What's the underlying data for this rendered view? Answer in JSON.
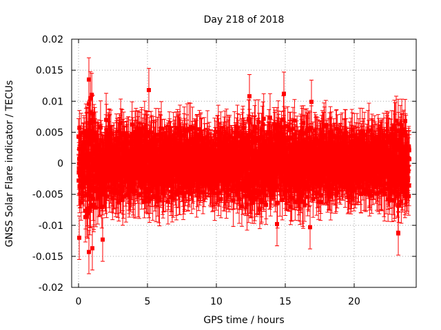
{
  "chart_data": {
    "type": "scatter",
    "title": "Day 218 of 2018",
    "xlabel": "GPS time / hours",
    "ylabel": "GNSS Solar Flare indicator / TECUs",
    "xlim": [
      -0.5,
      24.5
    ],
    "ylim": [
      -0.02,
      0.02
    ],
    "x_ticks": [
      0,
      5,
      10,
      15,
      20
    ],
    "x_tick_labels": [
      "0",
      "5",
      "10",
      "15",
      "20"
    ],
    "y_ticks": [
      -0.02,
      -0.015,
      -0.01,
      -0.005,
      0,
      0.005,
      0.01,
      0.015,
      0.02
    ],
    "y_tick_labels": [
      "-0.02",
      "-0.015",
      "-0.01",
      "-0.005",
      "0",
      "0.005",
      "0.01",
      "0.015",
      "0.02"
    ],
    "grid": true,
    "series": [
      {
        "name": "solar flare indicator",
        "color": "#ff0000",
        "marker": "square",
        "error_bars": true,
        "x_range": [
          0,
          24
        ],
        "typical_error": 0.0035,
        "noise_envelope": [
          {
            "x": 0.0,
            "spread": 0.006
          },
          {
            "x": 0.5,
            "spread": 0.009
          },
          {
            "x": 0.8,
            "spread": 0.012
          },
          {
            "x": 1.5,
            "spread": 0.008
          },
          {
            "x": 3.0,
            "spread": 0.0065
          },
          {
            "x": 6.0,
            "spread": 0.0065
          },
          {
            "x": 10.0,
            "spread": 0.0055
          },
          {
            "x": 12.5,
            "spread": 0.0075
          },
          {
            "x": 15.0,
            "spread": 0.0075
          },
          {
            "x": 17.0,
            "spread": 0.0065
          },
          {
            "x": 20.0,
            "spread": 0.0055
          },
          {
            "x": 22.0,
            "spread": 0.0055
          },
          {
            "x": 23.5,
            "spread": 0.0075
          },
          {
            "x": 24.0,
            "spread": 0.006
          }
        ],
        "notable_points": [
          {
            "x": 0.05,
            "y": -0.012
          },
          {
            "x": 0.75,
            "y": 0.0135
          },
          {
            "x": 0.75,
            "y": -0.0143
          },
          {
            "x": 1.0,
            "y": -0.0137
          },
          {
            "x": 1.75,
            "y": -0.0123
          },
          {
            "x": 5.1,
            "y": 0.0118
          },
          {
            "x": 12.4,
            "y": 0.0108
          },
          {
            "x": 14.9,
            "y": 0.0112
          },
          {
            "x": 14.4,
            "y": -0.0098
          },
          {
            "x": 16.9,
            "y": 0.0099
          },
          {
            "x": 16.8,
            "y": -0.0103
          },
          {
            "x": 23.2,
            "y": -0.0113
          },
          {
            "x": 23.7,
            "y": 0.0068
          }
        ]
      }
    ]
  }
}
